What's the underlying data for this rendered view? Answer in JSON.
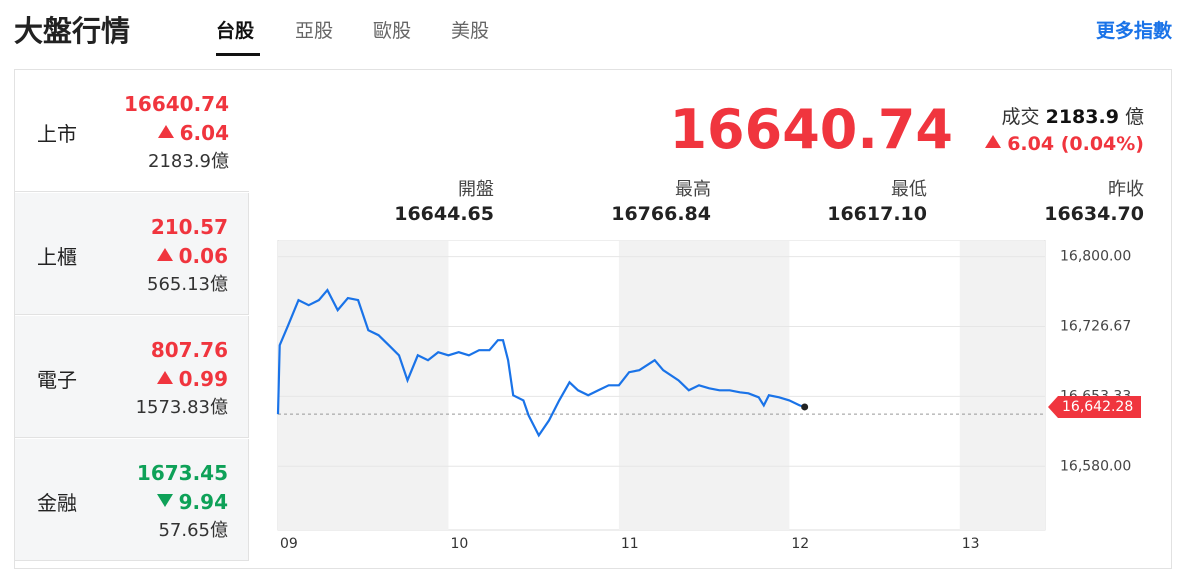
{
  "header": {
    "title": "大盤行情",
    "tabs": [
      "台股",
      "亞股",
      "歐股",
      "美股"
    ],
    "active_tab": 0,
    "more_link": "更多指數"
  },
  "volume_unit": "億",
  "markets": [
    {
      "name": "上市",
      "price": "16640.74",
      "change": "6.04",
      "direction": "up",
      "volume": "2183.9"
    },
    {
      "name": "上櫃",
      "price": "210.57",
      "change": "0.06",
      "direction": "up",
      "volume": "565.13"
    },
    {
      "name": "電子",
      "price": "807.76",
      "change": "0.99",
      "direction": "up",
      "volume": "1573.83"
    },
    {
      "name": "金融",
      "price": "1673.45",
      "change": "9.94",
      "direction": "down",
      "volume": "57.65"
    }
  ],
  "quote": {
    "price": "16640.74",
    "turnover_label": "成交",
    "turnover": "2183.9",
    "change": "6.04",
    "change_pct": "(0.04%)",
    "direction": "up",
    "stats": [
      {
        "label": "開盤",
        "value": "16644.65"
      },
      {
        "label": "最高",
        "value": "16766.84"
      },
      {
        "label": "最低",
        "value": "16617.10"
      },
      {
        "label": "昨收",
        "value": "16634.70"
      }
    ]
  },
  "chart_data": {
    "type": "line",
    "x": [
      9.0,
      9.01,
      9.06,
      9.12,
      9.18,
      9.24,
      9.29,
      9.35,
      9.41,
      9.47,
      9.53,
      9.59,
      9.65,
      9.71,
      9.76,
      9.82,
      9.88,
      9.94,
      10.0,
      10.06,
      10.12,
      10.18,
      10.24,
      10.29,
      10.32,
      10.35,
      10.38,
      10.44,
      10.47,
      10.53,
      10.59,
      10.65,
      10.71,
      10.76,
      10.82,
      10.88,
      10.94,
      11.0,
      11.06,
      11.12,
      11.21,
      11.26,
      11.35,
      11.41,
      11.47,
      11.53,
      11.59,
      11.65,
      11.71,
      11.76,
      11.82,
      11.85,
      11.88,
      11.94,
      12.0,
      12.06,
      12.09
    ],
    "series": [
      {
        "color": "#1a73e8",
        "values": [
          16634.7,
          16707.1,
          16728.1,
          16754.4,
          16749.1,
          16754.4,
          16764.9,
          16743.9,
          16756.5,
          16754.4,
          16722.8,
          16717.6,
          16707.1,
          16696.5,
          16670.2,
          16696.5,
          16691.3,
          16699.7,
          16696.5,
          16699.7,
          16696.5,
          16701.8,
          16701.8,
          16712.3,
          16712.3,
          16691.3,
          16654.5,
          16649.2,
          16633.4,
          16612.4,
          16628.2,
          16649.2,
          16668.1,
          16659.7,
          16654.5,
          16659.7,
          16665.0,
          16665.0,
          16678.7,
          16680.8,
          16691.3,
          16680.8,
          16670.2,
          16659.7,
          16665.0,
          16661.8,
          16659.7,
          16659.7,
          16657.6,
          16656.6,
          16652.4,
          16643.9,
          16654.5,
          16652.4,
          16649.2,
          16643.9,
          16642.28
        ]
      }
    ],
    "xlim": [
      9,
      13.5
    ],
    "xticks": [
      {
        "value": 9,
        "label": "09"
      },
      {
        "value": 10,
        "label": "10"
      },
      {
        "value": 11,
        "label": "11"
      },
      {
        "value": 12,
        "label": "12"
      },
      {
        "value": 13,
        "label": "13"
      }
    ],
    "ylim": [
      16574,
      16807
    ],
    "yticks": [
      {
        "value": 16800,
        "label": "16,800.00"
      },
      {
        "value": 16726.67,
        "label": "16,726.67"
      },
      {
        "value": 16653.33,
        "label": "16,653.33"
      },
      {
        "value": 16580,
        "label": "16,580.00"
      }
    ],
    "grid": true,
    "last_price": {
      "value": 16642.28,
      "label": "16,642.28"
    },
    "up_color": "#f0353e",
    "down_color": "#0ea158"
  }
}
